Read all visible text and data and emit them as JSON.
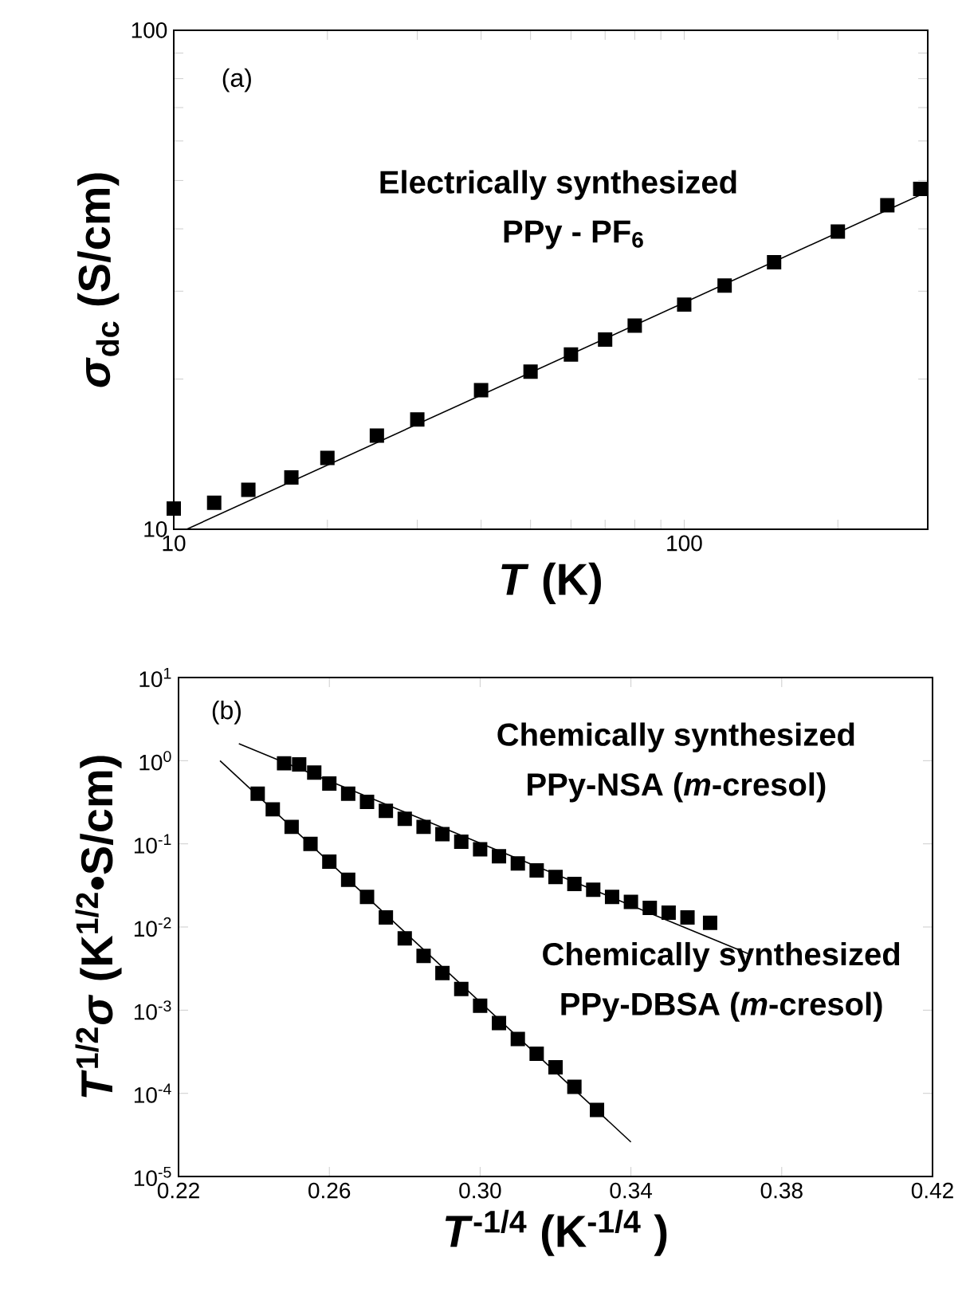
{
  "chart_data": [
    {
      "type": "scatter",
      "log": "xy",
      "xlabel": "*T* (K)",
      "ylabel": "*σ*$_{dc}$ (S/cm)",
      "annotations": [
        "(a)",
        "Electrically synthesized",
        "PPy - PF$_{6}$"
      ],
      "xlim": [
        10,
        300
      ],
      "ylim": [
        10,
        100
      ],
      "xticks": [
        10,
        {
          "value": 20,
          "label": null
        },
        {
          "value": 30,
          "label": null
        },
        {
          "value": 40,
          "label": null
        },
        {
          "value": 50,
          "label": null
        },
        {
          "value": 60,
          "label": null
        },
        {
          "value": 70,
          "label": null
        },
        {
          "value": 80,
          "label": null
        },
        {
          "value": 90,
          "label": null
        },
        100,
        {
          "value": 200,
          "label": null
        },
        {
          "value": 300,
          "label": null
        }
      ],
      "yticks": [
        10,
        {
          "value": 20,
          "label": null
        },
        {
          "value": 30,
          "label": null
        },
        {
          "value": 40,
          "label": null
        },
        {
          "value": 50,
          "label": null
        },
        {
          "value": 60,
          "label": null
        },
        {
          "value": 70,
          "label": null
        },
        {
          "value": 80,
          "label": null
        },
        {
          "value": 90,
          "label": null
        },
        100
      ],
      "series": [
        {
          "marker": "square",
          "color": "#000000",
          "x": [
            10,
            12,
            14,
            17,
            20,
            25,
            30,
            40,
            50,
            60,
            70,
            80,
            100,
            120,
            150,
            200,
            250,
            290
          ],
          "values": [
            11.0,
            11.3,
            12.0,
            12.7,
            13.9,
            15.4,
            16.6,
            19.0,
            20.7,
            22.4,
            24.0,
            25.6,
            28.2,
            30.8,
            34.3,
            39.5,
            44.6,
            48.1
          ]
        },
        {
          "type": "line",
          "color": "#000000",
          "x": [
            10.6,
            300
          ],
          "values": [
            10,
            47.5
          ]
        }
      ]
    },
    {
      "type": "scatter",
      "log": "y",
      "xlabel": "*T*$^{-1/4}$ (K$^{-1/4}$ )",
      "ylabel": "*T*$^{1/2}$*σ* (K$^{1/2}$•S/cm)",
      "annotations": [
        "(b)",
        "Chemically synthesized",
        "PPy-NSA (*m*-cresol)",
        "Chemically synthesized",
        "PPy-DBSA (*m*-cresol)"
      ],
      "xlim": [
        0.22,
        0.42
      ],
      "ylim": [
        1e-05,
        10
      ],
      "xticks": [
        0.22,
        0.26,
        {
          "value": 0.3,
          "label": "0.30"
        },
        0.34,
        0.38,
        0.42
      ],
      "yticks": [
        {
          "value": 1e-05,
          "label": "10$^{-5}$"
        },
        {
          "value": 0.0001,
          "label": "10$^{-4}$"
        },
        {
          "value": 0.001,
          "label": "10$^{-3}$"
        },
        {
          "value": 0.01,
          "label": "10$^{-2}$"
        },
        {
          "value": 0.1,
          "label": "10$^{-1}$"
        },
        {
          "value": 1,
          "label": "10$^{0}$"
        },
        {
          "value": 10,
          "label": "10$^{1}$"
        }
      ],
      "series": [
        {
          "marker": "square",
          "color": "#000000",
          "x": [
            0.248,
            0.252,
            0.256,
            0.26,
            0.265,
            0.27,
            0.275,
            0.28,
            0.285,
            0.29,
            0.295,
            0.3,
            0.305,
            0.31,
            0.315,
            0.32,
            0.325,
            0.33,
            0.335,
            0.34,
            0.345,
            0.35,
            0.355,
            0.361
          ],
          "values": [
            0.93,
            0.9,
            0.72,
            0.53,
            0.4,
            0.32,
            0.25,
            0.2,
            0.16,
            0.131,
            0.106,
            0.086,
            0.071,
            0.058,
            0.048,
            0.04,
            0.033,
            0.028,
            0.023,
            0.02,
            0.017,
            0.0149,
            0.013,
            0.0112
          ]
        },
        {
          "type": "line",
          "color": "#000000",
          "x": [
            0.236,
            0.371
          ],
          "values": [
            1.6,
            0.0048
          ]
        },
        {
          "marker": "square",
          "color": "#000000",
          "x": [
            0.241,
            0.245,
            0.25,
            0.255,
            0.26,
            0.265,
            0.27,
            0.275,
            0.28,
            0.285,
            0.29,
            0.295,
            0.3,
            0.305,
            0.31,
            0.315,
            0.32,
            0.325,
            0.331
          ],
          "values": [
            0.4,
            0.26,
            0.16,
            0.1,
            0.061,
            0.037,
            0.023,
            0.013,
            0.0073,
            0.0045,
            0.0028,
            0.0018,
            0.00113,
            0.0007,
            0.00045,
            0.0003,
            0.000206,
            0.00012,
            6.3e-05
          ]
        },
        {
          "type": "line",
          "color": "#000000",
          "x": [
            0.231,
            0.34
          ],
          "values": [
            1.0,
            2.6e-05
          ]
        }
      ]
    }
  ]
}
